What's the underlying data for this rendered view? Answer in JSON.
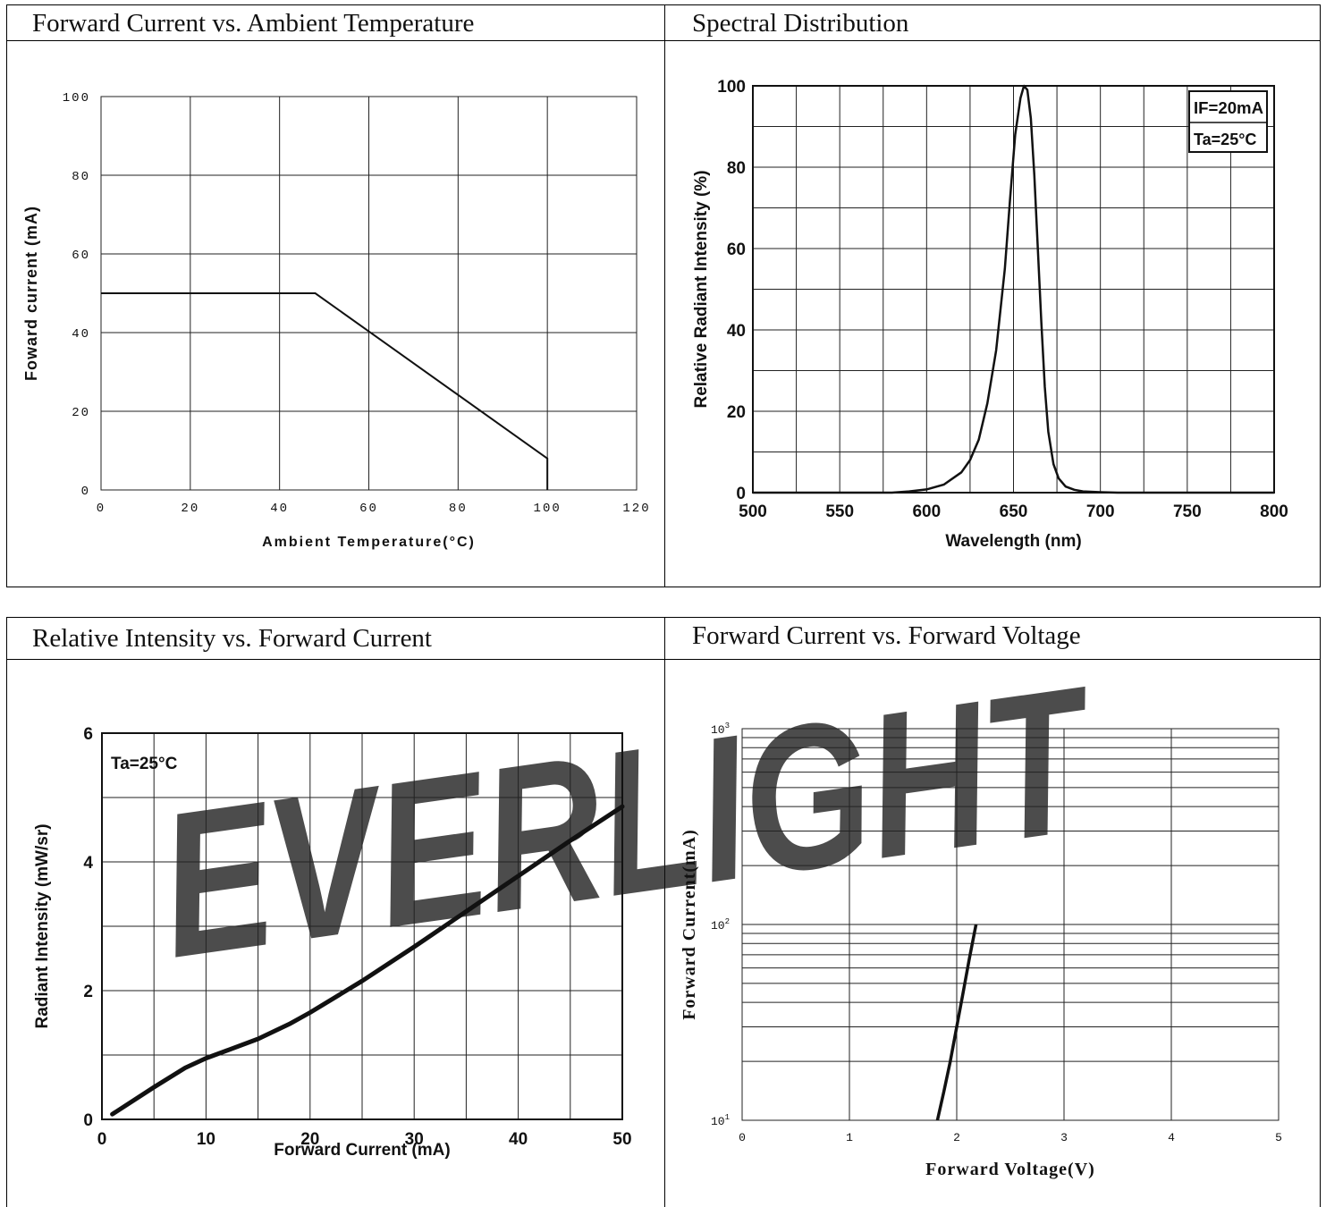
{
  "panels": [
    {
      "title": "Forward Current vs. Ambient Temperature",
      "chart_data": {
        "type": "line",
        "xlabel": "Ambient Temperature(°C)",
        "ylabel": "Foward current (mA)",
        "xlim": [
          0,
          120
        ],
        "ylim": [
          0,
          100
        ],
        "xticks": [
          "0",
          "20",
          "40",
          "60",
          "80",
          "100",
          "120"
        ],
        "yticks": [
          "0",
          "20",
          "40",
          "60",
          "80",
          "100"
        ],
        "grid": true,
        "series": [
          {
            "x": [
              0,
              48,
              100,
              100
            ],
            "y": [
              50,
              50,
              8,
              0
            ]
          }
        ]
      }
    },
    {
      "title": "Spectral Distribution",
      "chart_data": {
        "type": "line",
        "xlabel": "Wavelength (nm)",
        "ylabel": "Relative Radiant Intensity (%)",
        "xlim": [
          500,
          800
        ],
        "ylim": [
          0,
          100
        ],
        "xticks": [
          "500",
          "550",
          "600",
          "650",
          "700",
          "750",
          "800"
        ],
        "yticks": [
          "0",
          "20",
          "40",
          "60",
          "80",
          "100"
        ],
        "grid": true,
        "legend_box": [
          "IF=20mA",
          "Ta=25°C"
        ],
        "series": [
          {
            "x": [
              500,
              580,
              590,
              600,
              610,
              620,
              625,
              630,
              635,
              640,
              645,
              648,
              651,
              654,
              656,
              658,
              660,
              662,
              664,
              666,
              668,
              670,
              673,
              676,
              680,
              685,
              690,
              700,
              710,
              720,
              750,
              800
            ],
            "y": [
              0,
              0,
              0.3,
              0.8,
              2,
              5,
              8,
              13,
              22,
              35,
              55,
              72,
              88,
              97,
              100,
              99,
              92,
              78,
              60,
              42,
              26,
              15,
              7,
              3.5,
              1.5,
              0.7,
              0.3,
              0.1,
              0,
              0,
              0,
              0
            ]
          }
        ]
      }
    },
    {
      "title": "Relative Intensity vs. Forward Current",
      "chart_data": {
        "type": "line",
        "xlabel": "Forward Current (mA)",
        "ylabel": "Radiant Intensity (mW/sr)",
        "xlim": [
          0,
          50
        ],
        "ylim": [
          0,
          6
        ],
        "xticks": [
          "0",
          "10",
          "20",
          "30",
          "40",
          "50"
        ],
        "yticks": [
          "0",
          "2",
          "4",
          "6"
        ],
        "grid": true,
        "annotation": "Ta=25°C",
        "series": [
          {
            "x": [
              1,
              5,
              8,
              10,
              12,
              15,
              18,
              20,
              25,
              30,
              35,
              40,
              45,
              50
            ],
            "y": [
              0.08,
              0.5,
              0.8,
              0.95,
              1.07,
              1.25,
              1.48,
              1.66,
              2.15,
              2.68,
              3.23,
              3.78,
              4.33,
              4.86
            ]
          }
        ]
      }
    },
    {
      "title": "Forward Current vs. Forward Voltage",
      "chart_data": {
        "type": "line",
        "xlabel": "Forward Voltage(V)",
        "ylabel": "Forward Current(mA)",
        "xlim": [
          0,
          5
        ],
        "ylim": [
          10,
          1000
        ],
        "yscale": "log",
        "xticks": [
          "0",
          "1",
          "2",
          "3",
          "4",
          "5"
        ],
        "yticks": [
          {
            "base": "10",
            "exp": "1",
            "value": 10
          },
          {
            "base": "10",
            "exp": "2",
            "value": 100
          },
          {
            "base": "10",
            "exp": "3",
            "value": 1000
          }
        ],
        "grid": true,
        "series": [
          {
            "x": [
              1.82,
              1.88,
              1.94,
              2.0,
              2.06,
              2.12,
              2.18
            ],
            "y": [
              10,
              14,
              20,
              30,
              45,
              68,
              100
            ]
          }
        ]
      }
    }
  ],
  "watermark": {
    "text": "EVERLIGHT",
    "color": "#cfe4f3"
  }
}
